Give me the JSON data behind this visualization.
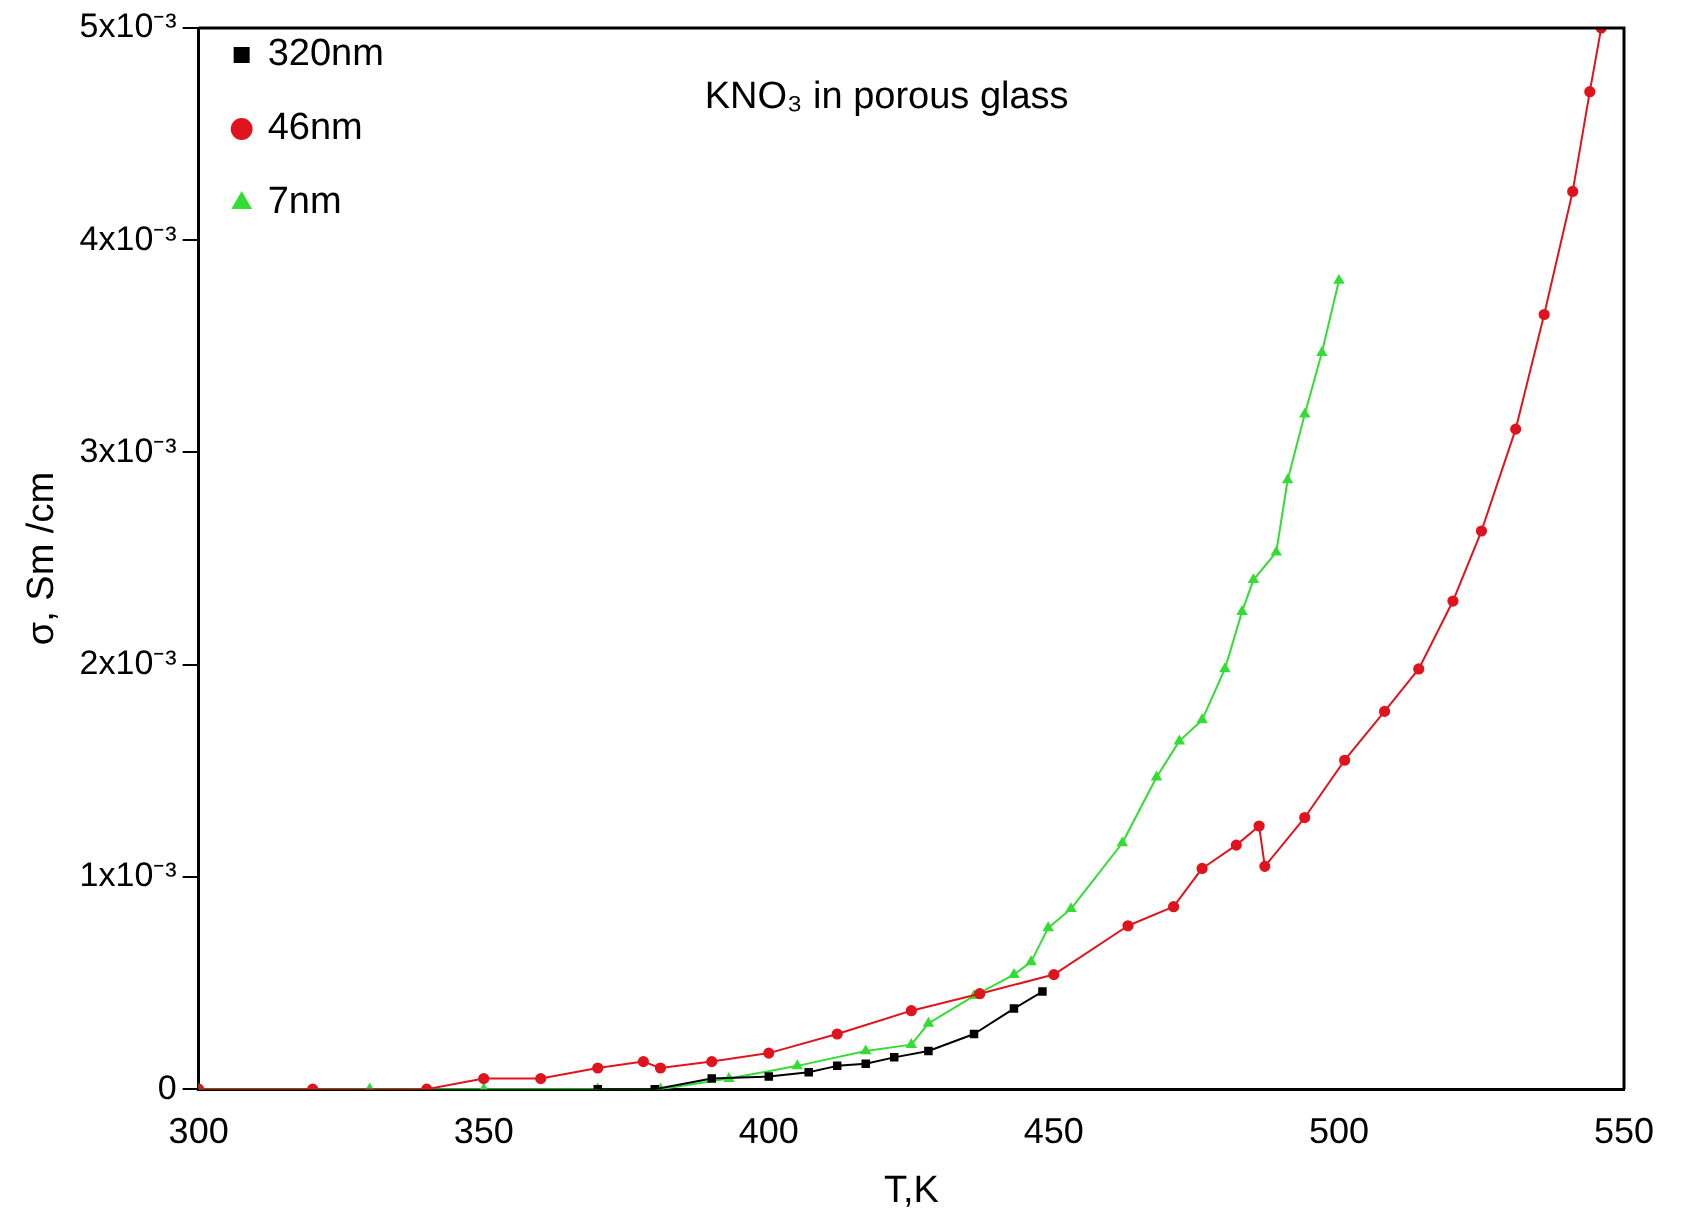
{
  "chart_data": {
    "type": "line",
    "xlabel": "T,K",
    "ylabel": "σ, Sm /cm",
    "annotations": [
      "KNO₃ in porous glass"
    ],
    "xlim": [
      300,
      550
    ],
    "xticks": [
      300,
      350,
      400,
      450,
      500,
      550
    ],
    "ylim": [
      0,
      0.005
    ],
    "yticks": [
      {
        "value": 0,
        "label": "0"
      },
      {
        "value": 0.001,
        "label": "1x10⁻³"
      },
      {
        "value": 0.002,
        "label": "2x10⁻³"
      },
      {
        "value": 0.003,
        "label": "3x10⁻³"
      },
      {
        "value": 0.004,
        "label": "4x10⁻³"
      },
      {
        "value": 0.005,
        "label": "5x10⁻³"
      }
    ],
    "grid": false,
    "legend": "top left",
    "line_style": "solid",
    "series": [
      {
        "name": "320nm",
        "color": "#000000",
        "marker": "square",
        "x": [
          370,
          380,
          390,
          400,
          407,
          412,
          417,
          422,
          428,
          436,
          443,
          448
        ],
        "values": [
          0,
          0,
          5e-05,
          6e-05,
          8e-05,
          0.00011,
          0.00012,
          0.00015,
          0.00018,
          0.00026,
          0.00038,
          0.00046
        ]
      },
      {
        "name": "46nm",
        "color": "#e0141e",
        "marker": "circle",
        "x": [
          300,
          320,
          340,
          350,
          360,
          370,
          378,
          381,
          390,
          400,
          412,
          425,
          437,
          450,
          463,
          471,
          476,
          482,
          486,
          487,
          494,
          501,
          508,
          514,
          520,
          525,
          531,
          536,
          541,
          544,
          546
        ],
        "values": [
          0,
          0,
          0,
          5e-05,
          5e-05,
          0.0001,
          0.00013,
          0.0001,
          0.00013,
          0.00017,
          0.00026,
          0.00037,
          0.00045,
          0.00054,
          0.00077,
          0.00086,
          0.00104,
          0.00115,
          0.00124,
          0.00105,
          0.00128,
          0.00155,
          0.00178,
          0.00198,
          0.0023,
          0.00263,
          0.00311,
          0.00365,
          0.00423,
          0.0047,
          0.005
        ]
      },
      {
        "name": "7nm",
        "color": "#33dd33",
        "marker": "triangle",
        "x": [
          300,
          330,
          350,
          370,
          381,
          393,
          405,
          417,
          425,
          428,
          436,
          443,
          446,
          449,
          453,
          462,
          468,
          472,
          476,
          480,
          483,
          485,
          489,
          491,
          494,
          497,
          500
        ],
        "values": [
          0,
          0,
          0,
          0,
          0,
          5e-05,
          0.00011,
          0.00018,
          0.00021,
          0.00031,
          0.00044,
          0.00054,
          0.0006,
          0.00076,
          0.00085,
          0.00116,
          0.00147,
          0.00164,
          0.00174,
          0.00198,
          0.00225,
          0.0024,
          0.00253,
          0.00287,
          0.00318,
          0.00347,
          0.00381
        ]
      }
    ]
  }
}
